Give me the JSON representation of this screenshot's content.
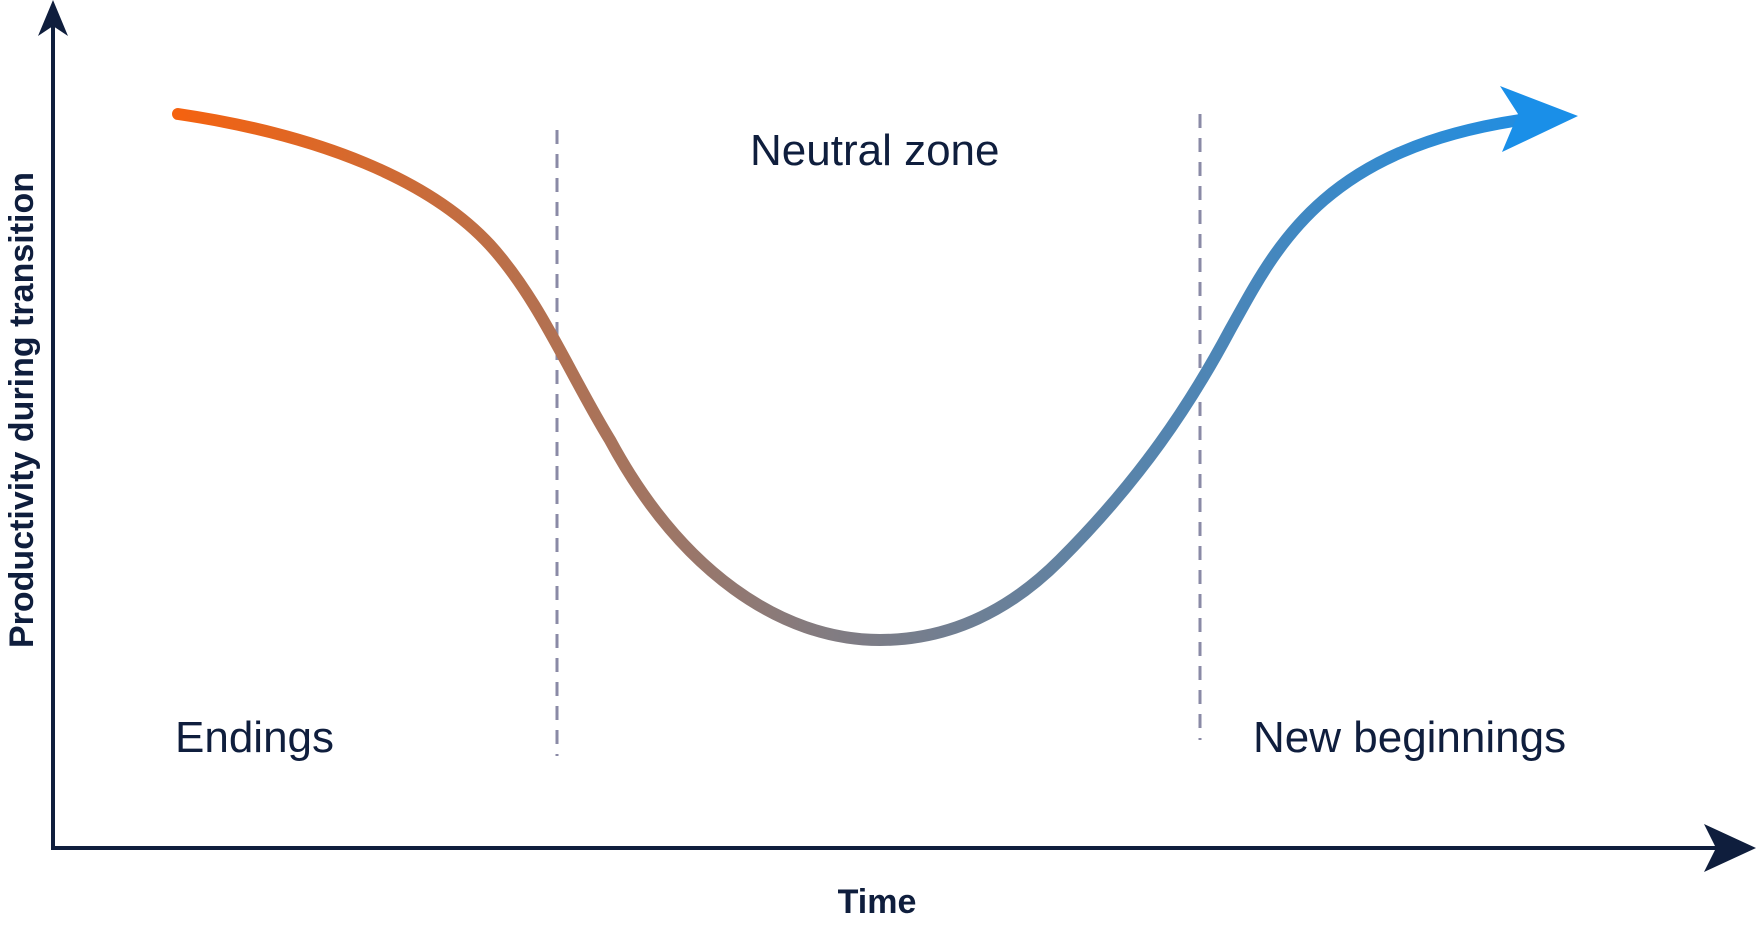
{
  "axes": {
    "x_label": "Time",
    "y_label": "Productivity during transition"
  },
  "zones": {
    "endings": "Endings",
    "neutral": "Neutral zone",
    "new_beginnings": "New beginnings"
  },
  "colors": {
    "axis": "#0f1e3d",
    "curve_start": "#f5620f",
    "curve_mid": "#857b7e",
    "curve_end": "#1a8fe8",
    "divider": "#8a8aa6"
  }
}
